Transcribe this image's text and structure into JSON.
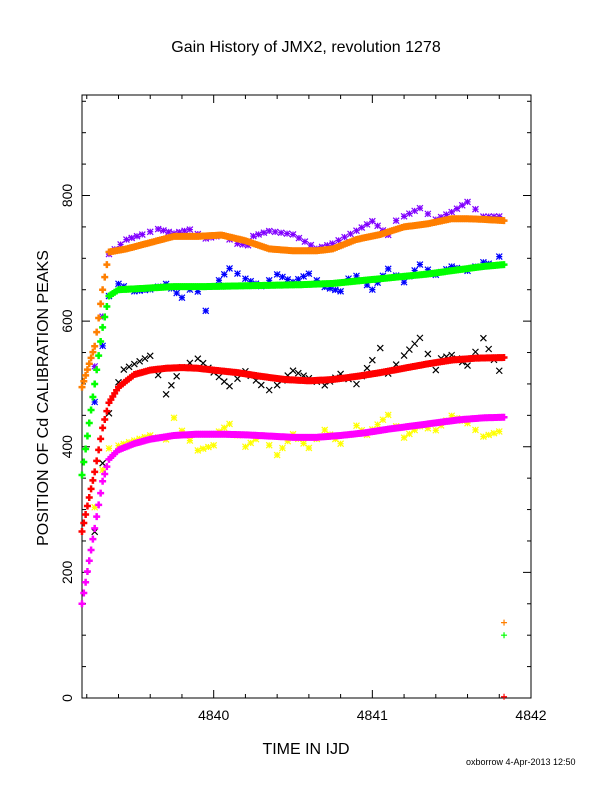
{
  "chart_data": {
    "type": "scatter",
    "title": "Gain History of JMX2, revolution 1278",
    "xlabel": "TIME IN IJD",
    "ylabel": "POSITION OF Cd CALIBRATION PEAKS",
    "xlim": [
      4839.17,
      4842.0
    ],
    "ylim": [
      0,
      960
    ],
    "xticks": [
      4840,
      4841,
      4842
    ],
    "yticks": [
      0,
      200,
      400,
      600,
      800
    ],
    "grid": false,
    "legend": "none",
    "series": [
      {
        "role": "raw",
        "color": "#8000ff",
        "marker": "star",
        "x": [
          4839.25,
          4839.3,
          4839.34,
          4839.45,
          4839.55,
          4839.65,
          4839.75,
          4839.85,
          4839.95,
          4840.05,
          4840.15,
          4840.25,
          4840.35,
          4840.5,
          4840.65,
          4840.75,
          4840.9,
          4841.0,
          4841.1,
          4841.2,
          4841.3,
          4841.4,
          4841.5,
          4841.6,
          4841.7,
          4841.8
        ],
        "y": [
          520,
          600,
          700,
          725,
          735,
          745,
          740,
          748,
          735,
          742,
          730,
          728,
          738,
          735,
          715,
          725,
          748,
          765,
          745,
          760,
          775,
          758,
          772,
          790,
          768,
          770
        ]
      },
      {
        "role": "fit",
        "color": "#ff7f00",
        "marker": "plus",
        "x": [
          4839.17,
          4839.25,
          4839.3,
          4839.34,
          4839.45,
          4839.6,
          4839.75,
          4839.9,
          4840.05,
          4840.2,
          4840.35,
          4840.5,
          4840.65,
          4840.75,
          4840.9,
          4841.05,
          4841.2,
          4841.35,
          4841.5,
          4841.6,
          4841.7,
          4841.83
        ],
        "y": [
          495,
          560,
          650,
          710,
          715,
          725,
          735,
          735,
          737,
          728,
          715,
          712,
          712,
          715,
          730,
          738,
          750,
          755,
          763,
          763,
          762,
          760
        ]
      },
      {
        "role": "raw",
        "color": "#0000ff",
        "marker": "star",
        "x": [
          4839.25,
          4839.3,
          4839.34,
          4839.4,
          4839.5,
          4839.6,
          4839.7,
          4839.8,
          4839.9,
          4839.95,
          4840.0,
          4840.1,
          4840.2,
          4840.3,
          4840.4,
          4840.5,
          4840.6,
          4840.7,
          4840.8,
          4840.9,
          4841.0,
          4841.1,
          4841.2,
          4841.3,
          4841.4,
          4841.5,
          4841.6,
          4841.7,
          4841.8
        ],
        "y": [
          470,
          560,
          640,
          660,
          650,
          655,
          665,
          645,
          640,
          610,
          650,
          680,
          665,
          655,
          675,
          665,
          680,
          660,
          655,
          665,
          645,
          680,
          660,
          690,
          675,
          690,
          685,
          700,
          695
        ]
      },
      {
        "role": "fit",
        "color": "#00ff00",
        "marker": "plus",
        "x": [
          4839.17,
          4839.25,
          4839.3,
          4839.34,
          4839.4,
          4839.55,
          4839.75,
          4839.95,
          4840.15,
          4840.35,
          4840.55,
          4840.75,
          4840.95,
          4841.15,
          4841.35,
          4841.55,
          4841.7,
          4841.83
        ],
        "y": [
          355,
          500,
          590,
          640,
          650,
          652,
          655,
          655,
          656,
          657,
          658,
          660,
          665,
          670,
          675,
          682,
          687,
          690
        ]
      },
      {
        "role": "raw",
        "color": "#000000",
        "marker": "cross",
        "x": [
          4839.25,
          4839.3,
          4839.34,
          4839.4,
          4839.5,
          4839.6,
          4839.7,
          4839.8,
          4839.9,
          4840.0,
          4840.1,
          4840.2,
          4840.3,
          4840.4,
          4840.5,
          4840.6,
          4840.7,
          4840.8,
          4840.9,
          4841.0,
          4841.05,
          4841.1,
          4841.2,
          4841.3,
          4841.4,
          4841.5,
          4841.6,
          4841.7,
          4841.8
        ],
        "y": [
          270,
          380,
          460,
          510,
          525,
          540,
          480,
          525,
          540,
          520,
          500,
          525,
          505,
          490,
          515,
          505,
          495,
          515,
          500,
          540,
          560,
          520,
          550,
          580,
          530,
          540,
          525,
          570,
          520
        ]
      },
      {
        "role": "fit",
        "color": "#ff0000",
        "marker": "plus",
        "x": [
          4839.17,
          4839.25,
          4839.3,
          4839.34,
          4839.4,
          4839.5,
          4839.6,
          4839.7,
          4839.8,
          4839.9,
          4840.0,
          4840.15,
          4840.3,
          4840.45,
          4840.6,
          4840.75,
          4840.9,
          4841.05,
          4841.2,
          4841.35,
          4841.5,
          4841.65,
          4841.83
        ],
        "y": [
          265,
          360,
          430,
          470,
          495,
          515,
          522,
          525,
          526,
          525,
          522,
          518,
          512,
          507,
          505,
          507,
          512,
          518,
          525,
          532,
          538,
          541,
          542
        ]
      },
      {
        "role": "raw",
        "color": "#ffff00",
        "marker": "star",
        "x": [
          4839.25,
          4839.3,
          4839.34,
          4839.4,
          4839.5,
          4839.6,
          4839.7,
          4839.75,
          4839.8,
          4839.9,
          4840.0,
          4840.1,
          4840.2,
          4840.3,
          4840.4,
          4840.5,
          4840.6,
          4840.7,
          4840.8,
          4840.9,
          4841.0,
          4841.1,
          4841.2,
          4841.3,
          4841.4,
          4841.5,
          4841.6,
          4841.7,
          4841.8
        ],
        "y": [
          300,
          360,
          395,
          400,
          410,
          420,
          415,
          450,
          430,
          400,
          410,
          430,
          395,
          415,
          385,
          420,
          400,
          430,
          410,
          440,
          420,
          445,
          410,
          430,
          425,
          450,
          440,
          420,
          430
        ]
      },
      {
        "role": "fit",
        "color": "#ff00ff",
        "marker": "plus",
        "x": [
          4839.17,
          4839.25,
          4839.3,
          4839.34,
          4839.4,
          4839.5,
          4839.6,
          4839.75,
          4839.9,
          4840.05,
          4840.2,
          4840.35,
          4840.5,
          4840.65,
          4840.8,
          4840.95,
          4841.1,
          4841.25,
          4841.4,
          4841.55,
          4841.7,
          4841.83
        ],
        "y": [
          150,
          270,
          345,
          380,
          395,
          405,
          412,
          418,
          420,
          420,
          419,
          417,
          415,
          415,
          418,
          422,
          428,
          433,
          438,
          443,
          446,
          447
        ]
      },
      {
        "role": "outlier",
        "color": "#ff7f00",
        "marker": "plus",
        "x": [
          4841.83
        ],
        "y": [
          120
        ]
      },
      {
        "role": "outlier",
        "color": "#00ff00",
        "marker": "plus",
        "x": [
          4841.83
        ],
        "y": [
          100
        ]
      },
      {
        "role": "outlier",
        "color": "#ff0000",
        "marker": "plus",
        "x": [
          4841.83
        ],
        "y": [
          2
        ]
      }
    ]
  },
  "footer": "oxborrow  4-Apr-2013 12:50"
}
